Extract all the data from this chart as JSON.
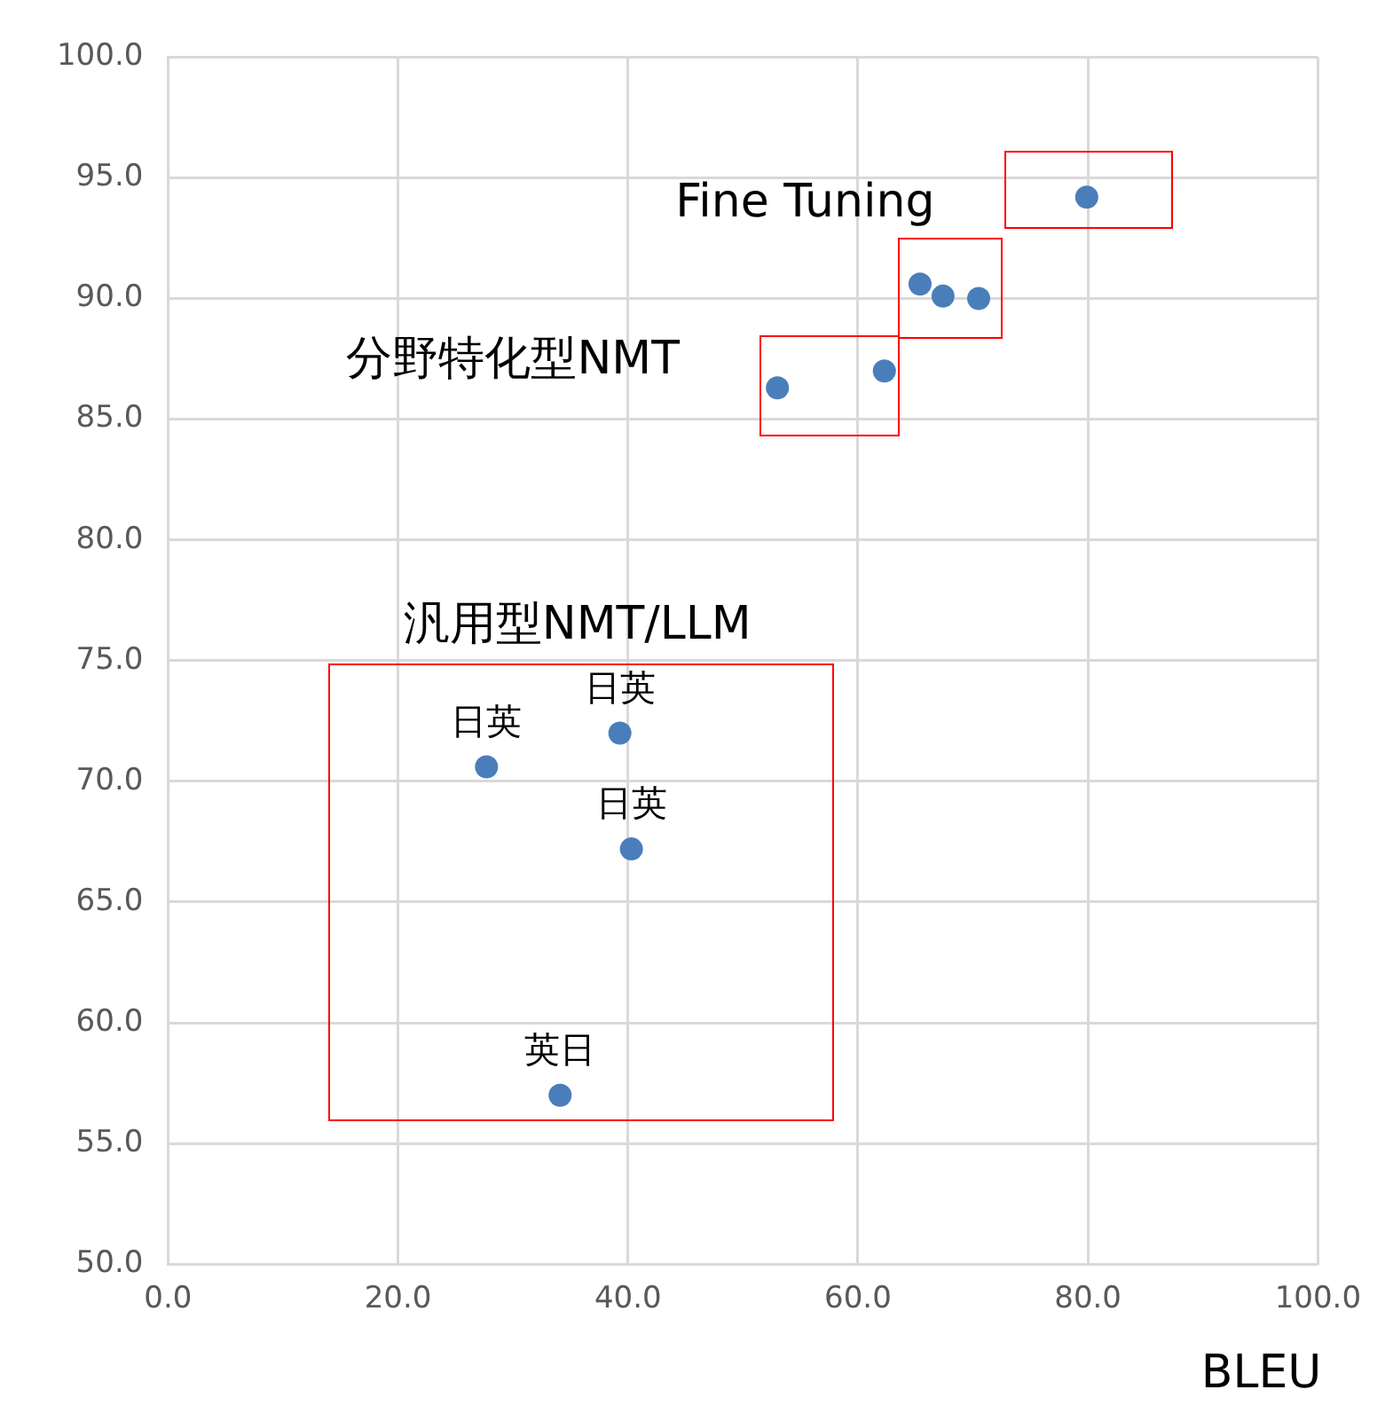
{
  "chart_data": {
    "type": "scatter",
    "xlabel": "BLEU",
    "series": [
      {
        "color": "#4a7ebb",
        "x": [
          27.7,
          39.3,
          40.3,
          34.1,
          53.0,
          62.3,
          65.4,
          67.4,
          70.5,
          79.9
        ],
        "values": [
          70.6,
          72.0,
          67.2,
          57.0,
          86.3,
          87.0,
          90.6,
          90.1,
          90.0,
          94.2
        ]
      }
    ],
    "xlim": [
      0,
      100
    ],
    "ylim": [
      50,
      100
    ],
    "xticks": [
      {
        "value": 0,
        "label": "0.0"
      },
      {
        "value": 20,
        "label": "20.0"
      },
      {
        "value": 40,
        "label": "40.0"
      },
      {
        "value": 60,
        "label": "60.0"
      },
      {
        "value": 80,
        "label": "80.0"
      },
      {
        "value": 100,
        "label": "100.0"
      }
    ],
    "yticks": [
      {
        "value": 50,
        "label": "50.0"
      },
      {
        "value": 55,
        "label": "55.0"
      },
      {
        "value": 60,
        "label": "60.0"
      },
      {
        "value": 65,
        "label": "65.0"
      },
      {
        "value": 70,
        "label": "70.0"
      },
      {
        "value": 75,
        "label": "75.0"
      },
      {
        "value": 80,
        "label": "80.0"
      },
      {
        "value": 85,
        "label": "85.0"
      },
      {
        "value": 90,
        "label": "90.0"
      },
      {
        "value": 95,
        "label": "95.0"
      },
      {
        "value": 100,
        "label": "100.0"
      }
    ],
    "annotations": [
      "Fine Tuning",
      "分野特化型NMT",
      "汎用型NMT/LLM",
      {
        "text": "日英",
        "x": 27.7,
        "y": 70.6
      },
      {
        "text": "日英",
        "x": 39.3,
        "y": 72.0
      },
      {
        "text": "日英",
        "x": 40.3,
        "y": 67.2
      },
      {
        "text": "英日",
        "x": 34.1,
        "y": 57.0
      }
    ],
    "grid": true,
    "marker": "circle",
    "legend": false
  }
}
